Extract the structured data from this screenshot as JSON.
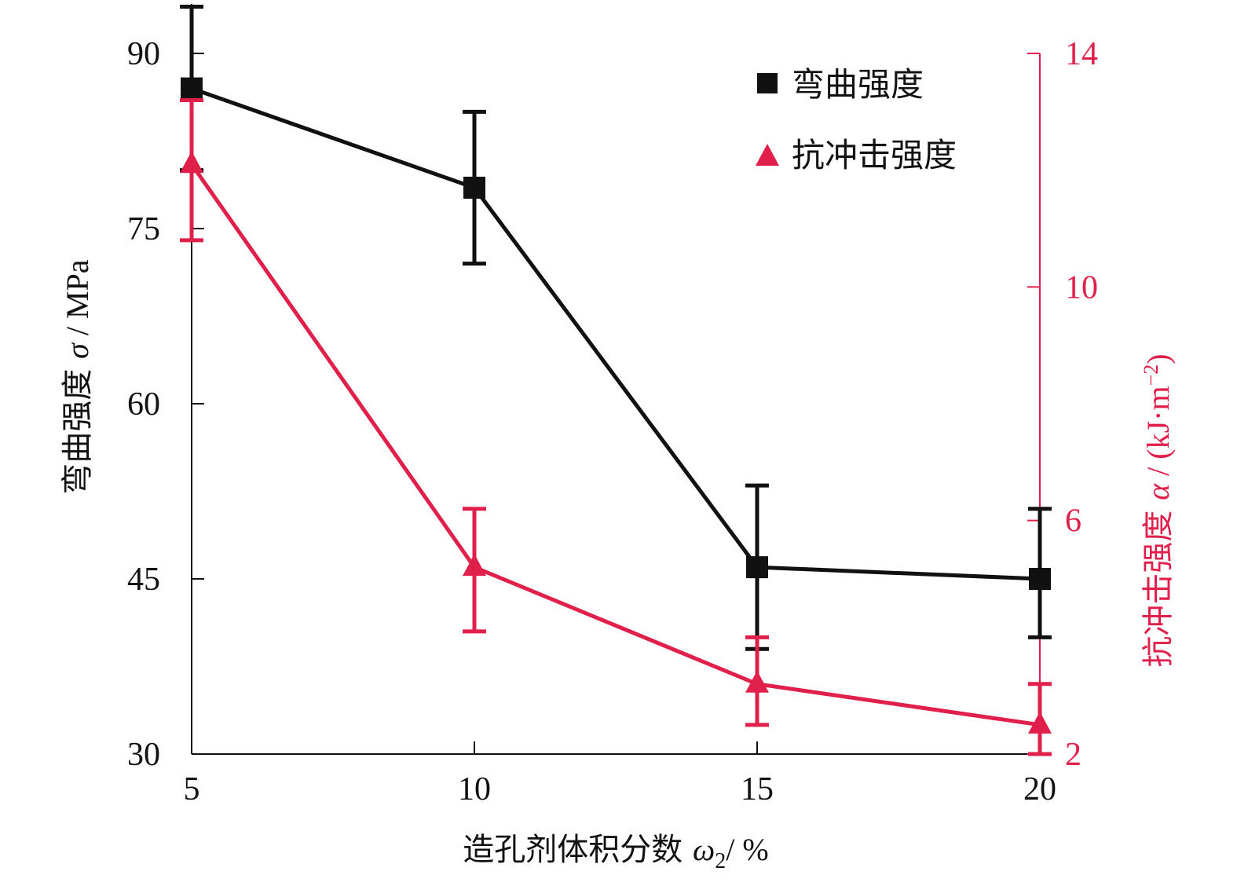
{
  "chart_data": {
    "type": "line",
    "x_label": {
      "text": "造孔剂体积分数 ",
      "symbol": "ω",
      "subscript": "2",
      "unit": "/ %"
    },
    "y_left_label": {
      "text": "弯曲强度 ",
      "symbol": "σ",
      "unit": " / MPa"
    },
    "y_right_label": {
      "text": "抗冲击强度 ",
      "symbol": "α",
      "unit": " / (kJ·m",
      "superscript": "−2",
      "close": ")"
    },
    "x": [
      5,
      10,
      15,
      20
    ],
    "x_ticks": [
      "5",
      "10",
      "15",
      "20"
    ],
    "xlim": [
      5,
      20
    ],
    "y_left_ticks": [
      "30",
      "45",
      "60",
      "75",
      "90"
    ],
    "y_left_lim": [
      30,
      90
    ],
    "y_right_ticks": [
      "2",
      "6",
      "10",
      "14"
    ],
    "y_right_lim": [
      2,
      14
    ],
    "series": [
      {
        "name": "弯曲强度",
        "axis": "left",
        "marker": "square",
        "color": "#111111",
        "values": [
          87,
          78.5,
          46,
          45
        ],
        "err_low": [
          80,
          72,
          39,
          40
        ],
        "err_high": [
          94,
          85,
          53,
          51
        ]
      },
      {
        "name": "抗冲击强度",
        "axis": "right",
        "marker": "triangle",
        "color": "#e0204a",
        "values": [
          12.1,
          5.2,
          3.2,
          2.5
        ],
        "err_low": [
          10.8,
          4.1,
          2.5,
          2.0
        ],
        "err_high": [
          13.2,
          6.2,
          4.0,
          3.2
        ]
      }
    ],
    "legend_position": "top-right",
    "grid": false
  }
}
